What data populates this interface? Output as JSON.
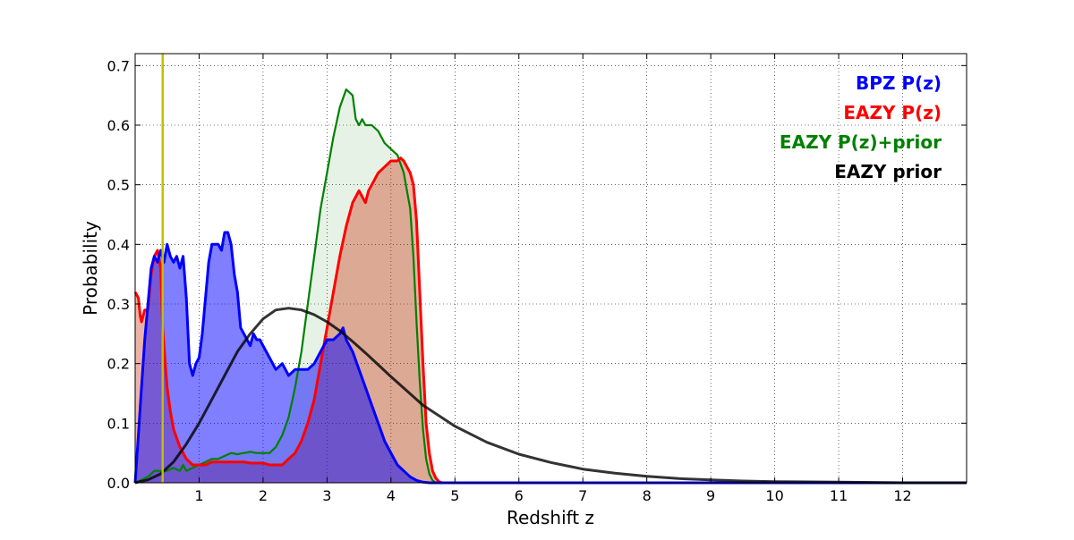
{
  "chart_data": {
    "type": "area",
    "title": "",
    "xlabel": "Redshift z",
    "ylabel": "Probability",
    "xlim": [
      0,
      13
    ],
    "ylim": [
      0,
      0.72
    ],
    "grid": true,
    "legend_position": "top-right",
    "x_ticks": [
      1,
      2,
      3,
      4,
      5,
      6,
      7,
      8,
      9,
      10,
      11,
      12
    ],
    "y_ticks": [
      0.0,
      0.1,
      0.2,
      0.3,
      0.4,
      0.5,
      0.6,
      0.7
    ],
    "y_tick_labels": [
      "0.0",
      "0.1",
      "0.2",
      "0.3",
      "0.4",
      "0.5",
      "0.6",
      "0.7"
    ],
    "vertical_line": {
      "x": 0.43,
      "color": "#bfbf00"
    },
    "legend": [
      {
        "label": "BPZ P(z)",
        "color": "#0000ff"
      },
      {
        "label": "EAZY P(z)",
        "color": "#ff0000"
      },
      {
        "label": "EAZY P(z)+prior",
        "color": "#008000"
      },
      {
        "label": "EAZY prior",
        "color": "#000000"
      }
    ],
    "series": [
      {
        "name": "BPZ P(z)",
        "color": "#0000ff",
        "fill": "#0000ff",
        "fill_opacity": 0.5,
        "x": [
          0,
          0.05,
          0.1,
          0.15,
          0.2,
          0.25,
          0.3,
          0.35,
          0.4,
          0.45,
          0.5,
          0.55,
          0.6,
          0.65,
          0.7,
          0.75,
          0.8,
          0.85,
          0.9,
          0.95,
          1.0,
          1.05,
          1.1,
          1.15,
          1.2,
          1.25,
          1.3,
          1.35,
          1.4,
          1.45,
          1.5,
          1.55,
          1.6,
          1.65,
          1.7,
          1.75,
          1.8,
          1.85,
          1.9,
          1.95,
          2.0,
          2.1,
          2.2,
          2.3,
          2.4,
          2.5,
          2.6,
          2.7,
          2.8,
          2.9,
          3.0,
          3.1,
          3.2,
          3.25,
          3.3,
          3.35,
          3.4,
          3.5,
          3.6,
          3.7,
          3.8,
          3.9,
          4.0,
          4.1,
          4.2,
          4.3,
          4.4,
          4.5,
          4.6,
          4.7,
          4.8,
          5.0,
          6.0,
          8.0,
          10.0,
          12.0,
          13.0
        ],
        "y": [
          0.0,
          0.08,
          0.16,
          0.24,
          0.3,
          0.36,
          0.38,
          0.37,
          0.39,
          0.37,
          0.4,
          0.38,
          0.37,
          0.38,
          0.36,
          0.38,
          0.31,
          0.2,
          0.18,
          0.2,
          0.21,
          0.25,
          0.31,
          0.37,
          0.4,
          0.4,
          0.4,
          0.39,
          0.42,
          0.42,
          0.4,
          0.35,
          0.32,
          0.26,
          0.25,
          0.24,
          0.23,
          0.25,
          0.24,
          0.24,
          0.23,
          0.21,
          0.19,
          0.2,
          0.18,
          0.19,
          0.19,
          0.19,
          0.2,
          0.22,
          0.24,
          0.24,
          0.25,
          0.26,
          0.24,
          0.23,
          0.22,
          0.19,
          0.16,
          0.13,
          0.1,
          0.07,
          0.05,
          0.03,
          0.02,
          0.01,
          0.004,
          0.001,
          0.0,
          0.0,
          0.0,
          0.0,
          0.0,
          0.0,
          0.0,
          0.0,
          0.0
        ]
      },
      {
        "name": "EAZY P(z)",
        "color": "#ff0000",
        "fill": "#cc2200",
        "fill_opacity": 0.35,
        "x": [
          0,
          0.05,
          0.08,
          0.1,
          0.15,
          0.2,
          0.25,
          0.3,
          0.35,
          0.4,
          0.43,
          0.47,
          0.5,
          0.55,
          0.6,
          0.7,
          0.8,
          0.9,
          1.0,
          1.1,
          1.2,
          1.3,
          1.4,
          1.5,
          1.6,
          1.7,
          1.8,
          1.9,
          2.0,
          2.1,
          2.2,
          2.3,
          2.4,
          2.5,
          2.6,
          2.7,
          2.8,
          2.9,
          3.0,
          3.1,
          3.2,
          3.3,
          3.4,
          3.5,
          3.55,
          3.6,
          3.65,
          3.7,
          3.8,
          3.9,
          4.0,
          4.1,
          4.15,
          4.2,
          4.25,
          4.3,
          4.35,
          4.4,
          4.45,
          4.5,
          4.55,
          4.6,
          4.65,
          4.7,
          4.75,
          4.8,
          5.0,
          6.0,
          8.0,
          10.0,
          12.0,
          13.0
        ],
        "y": [
          0.32,
          0.31,
          0.28,
          0.27,
          0.29,
          0.29,
          0.35,
          0.38,
          0.39,
          0.36,
          0.26,
          0.2,
          0.16,
          0.12,
          0.09,
          0.06,
          0.04,
          0.03,
          0.03,
          0.03,
          0.035,
          0.035,
          0.035,
          0.035,
          0.035,
          0.035,
          0.033,
          0.033,
          0.033,
          0.03,
          0.03,
          0.03,
          0.04,
          0.05,
          0.07,
          0.1,
          0.14,
          0.2,
          0.26,
          0.32,
          0.38,
          0.43,
          0.47,
          0.49,
          0.48,
          0.47,
          0.49,
          0.5,
          0.52,
          0.53,
          0.54,
          0.54,
          0.545,
          0.54,
          0.53,
          0.52,
          0.5,
          0.44,
          0.32,
          0.2,
          0.1,
          0.05,
          0.02,
          0.008,
          0.002,
          0.0,
          0.0,
          0.0,
          0.0,
          0.0,
          0.0,
          0.0
        ]
      },
      {
        "name": "EAZY P(z)+prior",
        "color": "#008000",
        "fill": "#008000",
        "fill_opacity": 0.1,
        "x": [
          0,
          0.1,
          0.2,
          0.3,
          0.4,
          0.5,
          0.6,
          0.7,
          0.75,
          0.8,
          0.9,
          1.0,
          1.1,
          1.2,
          1.3,
          1.4,
          1.5,
          1.6,
          1.7,
          1.8,
          1.9,
          2.0,
          2.1,
          2.2,
          2.3,
          2.4,
          2.5,
          2.6,
          2.7,
          2.8,
          2.9,
          3.0,
          3.1,
          3.2,
          3.3,
          3.4,
          3.45,
          3.5,
          3.55,
          3.6,
          3.65,
          3.7,
          3.8,
          3.9,
          4.0,
          4.1,
          4.2,
          4.3,
          4.35,
          4.4,
          4.45,
          4.5,
          4.55,
          4.6,
          4.65,
          4.7,
          4.75,
          4.8,
          5.0,
          6.0,
          8.0,
          10.0,
          12.0,
          13.0
        ],
        "y": [
          0.0,
          0.005,
          0.01,
          0.02,
          0.02,
          0.02,
          0.025,
          0.02,
          0.03,
          0.02,
          0.025,
          0.03,
          0.035,
          0.04,
          0.04,
          0.045,
          0.05,
          0.048,
          0.05,
          0.052,
          0.05,
          0.05,
          0.05,
          0.06,
          0.08,
          0.11,
          0.16,
          0.22,
          0.3,
          0.38,
          0.46,
          0.52,
          0.58,
          0.63,
          0.66,
          0.65,
          0.61,
          0.6,
          0.61,
          0.6,
          0.6,
          0.6,
          0.59,
          0.57,
          0.56,
          0.55,
          0.52,
          0.46,
          0.38,
          0.27,
          0.17,
          0.09,
          0.04,
          0.015,
          0.004,
          0.0,
          0.0,
          0.0,
          0.0,
          0.0,
          0.0,
          0.0,
          0.0,
          0.0
        ]
      },
      {
        "name": "EAZY prior",
        "color": "#000000",
        "fill": "none",
        "fill_opacity": 0,
        "x": [
          0,
          0.2,
          0.4,
          0.6,
          0.8,
          1.0,
          1.2,
          1.4,
          1.6,
          1.8,
          2.0,
          2.2,
          2.4,
          2.6,
          2.8,
          3.0,
          3.2,
          3.4,
          3.6,
          3.8,
          4.0,
          4.5,
          5.0,
          5.5,
          6.0,
          6.5,
          7.0,
          7.5,
          8.0,
          8.5,
          9.0,
          9.5,
          10.0,
          11.0,
          12.0,
          13.0
        ],
        "y": [
          0.0,
          0.005,
          0.015,
          0.035,
          0.065,
          0.1,
          0.14,
          0.18,
          0.22,
          0.25,
          0.275,
          0.29,
          0.293,
          0.29,
          0.282,
          0.27,
          0.255,
          0.237,
          0.218,
          0.198,
          0.178,
          0.13,
          0.095,
          0.068,
          0.048,
          0.034,
          0.023,
          0.016,
          0.011,
          0.007,
          0.005,
          0.003,
          0.002,
          0.001,
          0.0,
          0.0
        ]
      }
    ]
  }
}
